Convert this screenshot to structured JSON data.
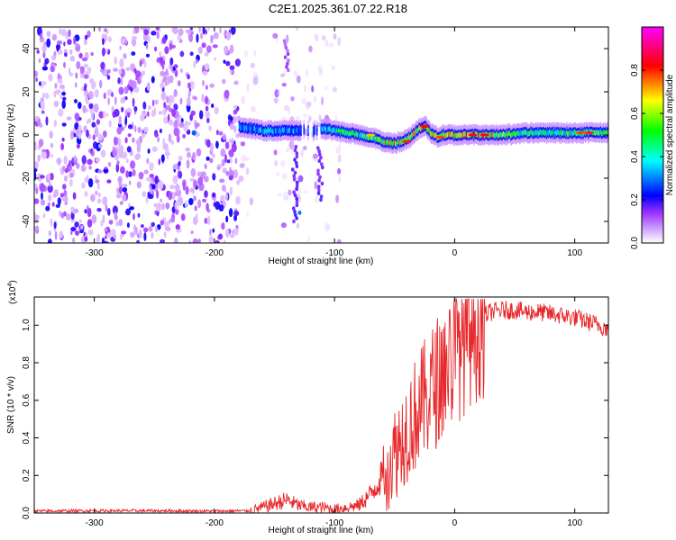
{
  "title": "C2E1.2025.361.07.22.R18",
  "chart_data": [
    {
      "type": "heatmap",
      "name": "spectrogram",
      "xlabel": "Height of straight line (km)",
      "ylabel": "Frequency (Hz)",
      "xlim": [
        -350,
        128
      ],
      "ylim": [
        -50,
        50
      ],
      "xticks": [
        -300,
        -200,
        -100,
        0,
        100
      ],
      "yticks": [
        -40,
        -20,
        0,
        20,
        40
      ],
      "colorbar": {
        "label": "Normalized spectral amplitude",
        "range": [
          0,
          1
        ],
        "ticks": [
          0.0,
          0.2,
          0.4,
          0.6,
          0.8
        ],
        "colors": [
          "#ffffff",
          "#9b30ff",
          "#0000ff",
          "#00ffff",
          "#00ff00",
          "#ffff00",
          "#ff0000",
          "#ff00ff"
        ]
      },
      "noise_regions": [
        {
          "x": [
            -350,
            -180
          ],
          "density": "high"
        },
        {
          "x": [
            -178,
            -95
          ],
          "density": "sparse"
        }
      ],
      "ridge": {
        "x": [
          -180,
          -160,
          -140,
          -120,
          -110,
          -100,
          -90,
          -80,
          -70,
          -60,
          -50,
          -40,
          -30,
          -25,
          -20,
          -15,
          -10,
          0,
          20,
          40,
          60,
          80,
          100,
          128
        ],
        "freq": [
          4,
          2,
          2,
          2,
          3,
          2,
          1,
          0,
          -1,
          -3,
          -4,
          -2,
          3,
          4,
          1,
          -1,
          0,
          0,
          0,
          0,
          1,
          1,
          1,
          1
        ],
        "amplitude": [
          0.35,
          0.4,
          0.35,
          0.3,
          0.4,
          0.45,
          0.5,
          0.55,
          0.6,
          0.7,
          0.75,
          0.7,
          0.75,
          0.8,
          0.7,
          0.65,
          0.7,
          0.75,
          0.85,
          0.6,
          0.55,
          0.5,
          0.6,
          0.55
        ]
      }
    },
    {
      "type": "line",
      "name": "snr",
      "xlabel": "Height of straight line (km)",
      "ylabel": "SNR (10 * v/v)",
      "scale_label": "(x10",
      "scale_exponent": "4",
      "scale_close": ")",
      "xlim": [
        -350,
        128
      ],
      "ylim": [
        0,
        1.15
      ],
      "xticks": [
        -300,
        -200,
        -100,
        0,
        100
      ],
      "yticks": [
        0.0,
        0.2,
        0.4,
        0.6,
        0.8,
        1.0
      ],
      "color": "#e8282a",
      "series": [
        {
          "name": "SNR",
          "x": [
            -350,
            -300,
            -250,
            -200,
            -170,
            -160,
            -150,
            -140,
            -130,
            -120,
            -110,
            -100,
            -90,
            -80,
            -70,
            -60,
            -50,
            -40,
            -30,
            -20,
            -10,
            0,
            10,
            20,
            30,
            40,
            50,
            60,
            70,
            80,
            90,
            100,
            110,
            120,
            128
          ],
          "values": [
            0.01,
            0.012,
            0.012,
            0.01,
            0.012,
            0.03,
            0.05,
            0.07,
            0.04,
            0.03,
            0.03,
            0.02,
            0.03,
            0.04,
            0.1,
            0.2,
            0.32,
            0.45,
            0.55,
            0.65,
            0.75,
            0.85,
            0.95,
            1.03,
            1.07,
            1.08,
            1.08,
            1.07,
            1.07,
            1.06,
            1.05,
            1.04,
            1.02,
            1.0,
            0.98
          ]
        }
      ]
    }
  ]
}
